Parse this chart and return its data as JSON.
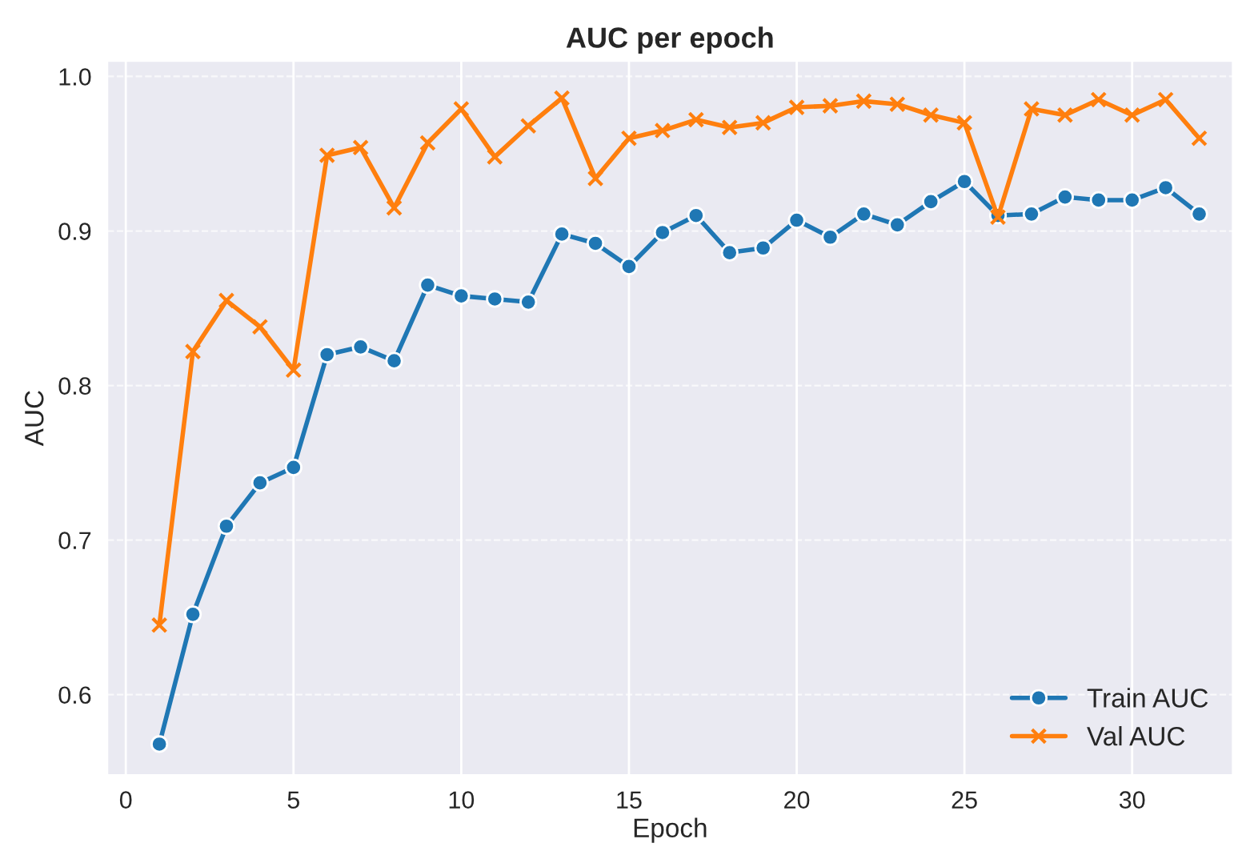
{
  "chart_data": {
    "type": "line",
    "title": "AUC per epoch",
    "xlabel": "Epoch",
    "ylabel": "AUC",
    "x": [
      1,
      2,
      3,
      4,
      5,
      6,
      7,
      8,
      9,
      10,
      11,
      12,
      13,
      14,
      15,
      16,
      17,
      18,
      19,
      20,
      21,
      22,
      23,
      24,
      25,
      26,
      27,
      28,
      29,
      30,
      31,
      32
    ],
    "series": [
      {
        "name": "Train AUC",
        "color": "#1f77b4",
        "marker": "circle",
        "values": [
          0.568,
          0.652,
          0.709,
          0.737,
          0.747,
          0.82,
          0.825,
          0.816,
          0.865,
          0.858,
          0.856,
          0.854,
          0.898,
          0.892,
          0.877,
          0.899,
          0.91,
          0.886,
          0.889,
          0.907,
          0.896,
          0.911,
          0.904,
          0.919,
          0.932,
          0.91,
          0.911,
          0.922,
          0.92,
          0.92,
          0.928,
          0.911
        ]
      },
      {
        "name": "Val AUC",
        "color": "#ff7f0e",
        "marker": "cross",
        "values": [
          0.645,
          0.822,
          0.855,
          0.838,
          0.81,
          0.949,
          0.954,
          0.915,
          0.957,
          0.979,
          0.948,
          0.968,
          0.986,
          0.934,
          0.96,
          0.965,
          0.972,
          0.967,
          0.97,
          0.98,
          0.981,
          0.984,
          0.982,
          0.975,
          0.97,
          0.909,
          0.979,
          0.975,
          0.985,
          0.975,
          0.985,
          0.96
        ]
      }
    ],
    "xlim": [
      -0.55,
      33.0
    ],
    "ylim": [
      0.548,
      1.01
    ],
    "xticks": [
      0,
      5,
      10,
      15,
      20,
      25,
      30
    ],
    "yticks": [
      0.6,
      0.7,
      0.8,
      0.9,
      {
        "value": 1.0,
        "label": "1.0"
      }
    ],
    "grid": true,
    "legend": "bottom right",
    "line_style": "solid"
  }
}
